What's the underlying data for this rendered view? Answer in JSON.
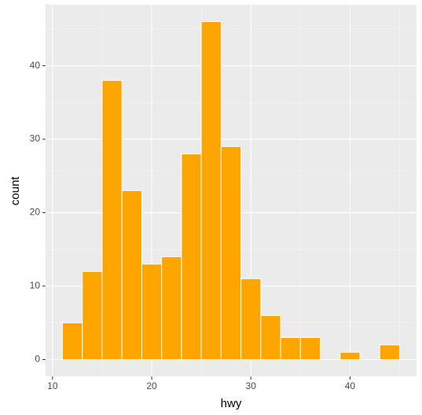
{
  "chart_data": {
    "type": "histogram",
    "x_label": "hwy",
    "y_label": "count",
    "bins": [
      11,
      13,
      15,
      17,
      19,
      21,
      23,
      25,
      27,
      29,
      31,
      33,
      35,
      37,
      39,
      41,
      43,
      45
    ],
    "counts": [
      5,
      12,
      38,
      23,
      13,
      14,
      28,
      46,
      29,
      11,
      6,
      3,
      3,
      0,
      1,
      0,
      2
    ],
    "color": "#ffa500",
    "xlim": [
      9.3,
      46.7
    ],
    "xticks": [
      10,
      20,
      30,
      40
    ],
    "ylim": [
      -2.3,
      48.3
    ],
    "yticks": [
      0,
      10,
      20,
      30,
      40
    ],
    "grid": true
  }
}
